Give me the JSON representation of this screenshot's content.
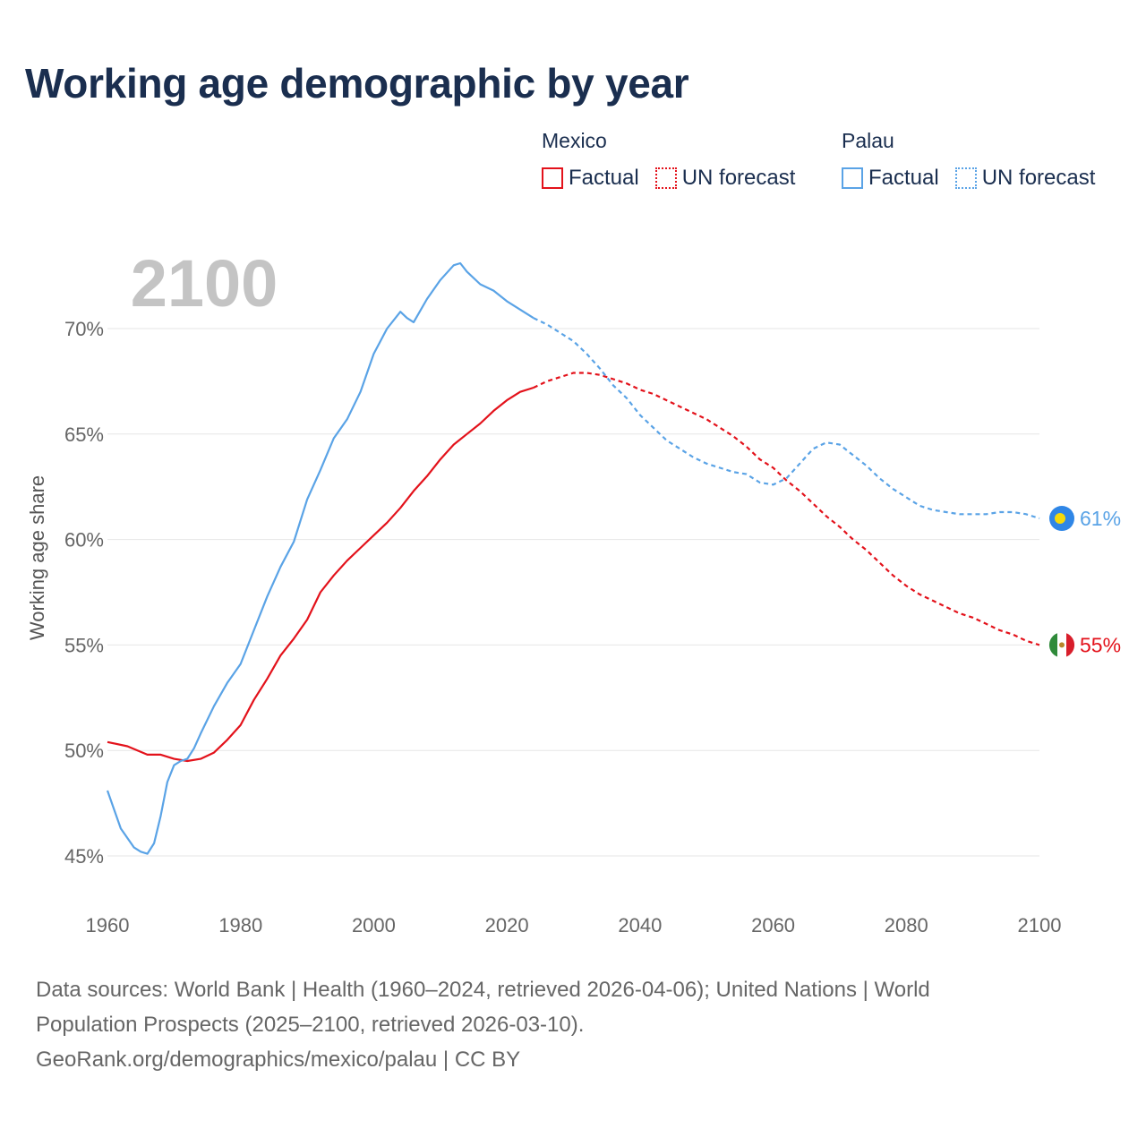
{
  "title": "Working age demographic by year",
  "year_label": "2100",
  "legend": {
    "mexico": {
      "name": "Mexico",
      "factual": "Factual",
      "forecast": "UN forecast"
    },
    "palau": {
      "name": "Palau",
      "factual": "Factual",
      "forecast": "UN forecast"
    }
  },
  "colors": {
    "mexico": "#e3121b",
    "palau": "#5aa3e6"
  },
  "source": {
    "line1": "Data sources: World Bank | Health (1960–2024, retrieved 2026-04-06); United Nations | World",
    "line2": "Population Prospects (2025–2100, retrieved 2026-03-10).",
    "line3": "GeoRank.org/demographics/mexico/palau | CC BY"
  },
  "chart_data": {
    "type": "line",
    "title": "Working age demographic by year",
    "xlabel": "",
    "ylabel": "Working age share",
    "xlim": [
      1960,
      2100
    ],
    "ylim": [
      44.5,
      72
    ],
    "x_ticks": [
      1960,
      1980,
      2000,
      2020,
      2040,
      2060,
      2080,
      2100
    ],
    "y_ticks": [
      45,
      50,
      55,
      60,
      65,
      70
    ],
    "y_tick_labels": [
      "45%",
      "50%",
      "55%",
      "60%",
      "65%",
      "70%"
    ],
    "grid": true,
    "series": [
      {
        "name": "Mexico",
        "key": "mexico",
        "factual": [
          [
            1960,
            50.4
          ],
          [
            1963,
            50.2
          ],
          [
            1966,
            49.8
          ],
          [
            1968,
            49.8
          ],
          [
            1970,
            49.6
          ],
          [
            1972,
            49.5
          ],
          [
            1974,
            49.6
          ],
          [
            1976,
            49.9
          ],
          [
            1978,
            50.5
          ],
          [
            1980,
            51.2
          ],
          [
            1982,
            52.4
          ],
          [
            1984,
            53.4
          ],
          [
            1986,
            54.5
          ],
          [
            1988,
            55.3
          ],
          [
            1990,
            56.2
          ],
          [
            1992,
            57.5
          ],
          [
            1994,
            58.3
          ],
          [
            1996,
            59.0
          ],
          [
            1998,
            59.6
          ],
          [
            2000,
            60.2
          ],
          [
            2002,
            60.8
          ],
          [
            2004,
            61.5
          ],
          [
            2006,
            62.3
          ],
          [
            2008,
            63.0
          ],
          [
            2010,
            63.8
          ],
          [
            2012,
            64.5
          ],
          [
            2014,
            65.0
          ],
          [
            2016,
            65.5
          ],
          [
            2018,
            66.1
          ],
          [
            2020,
            66.6
          ],
          [
            2022,
            67.0
          ],
          [
            2024,
            67.2
          ]
        ],
        "forecast": [
          [
            2024,
            67.2
          ],
          [
            2026,
            67.5
          ],
          [
            2028,
            67.7
          ],
          [
            2030,
            67.9
          ],
          [
            2032,
            67.9
          ],
          [
            2034,
            67.8
          ],
          [
            2036,
            67.6
          ],
          [
            2038,
            67.4
          ],
          [
            2040,
            67.1
          ],
          [
            2042,
            66.9
          ],
          [
            2044,
            66.6
          ],
          [
            2046,
            66.3
          ],
          [
            2048,
            66.0
          ],
          [
            2050,
            65.7
          ],
          [
            2052,
            65.3
          ],
          [
            2054,
            64.9
          ],
          [
            2056,
            64.4
          ],
          [
            2058,
            63.8
          ],
          [
            2060,
            63.4
          ],
          [
            2062,
            62.8
          ],
          [
            2064,
            62.3
          ],
          [
            2066,
            61.7
          ],
          [
            2068,
            61.1
          ],
          [
            2070,
            60.6
          ],
          [
            2072,
            60.0
          ],
          [
            2074,
            59.5
          ],
          [
            2076,
            58.9
          ],
          [
            2078,
            58.3
          ],
          [
            2080,
            57.8
          ],
          [
            2082,
            57.4
          ],
          [
            2084,
            57.1
          ],
          [
            2086,
            56.8
          ],
          [
            2088,
            56.5
          ],
          [
            2090,
            56.3
          ],
          [
            2092,
            56.0
          ],
          [
            2094,
            55.7
          ],
          [
            2096,
            55.5
          ],
          [
            2098,
            55.2
          ],
          [
            2100,
            55.0
          ]
        ],
        "end_label": "55%",
        "flag": "mexico-flag"
      },
      {
        "name": "Palau",
        "key": "palau",
        "factual": [
          [
            1960,
            48.1
          ],
          [
            1962,
            46.3
          ],
          [
            1964,
            45.4
          ],
          [
            1965,
            45.2
          ],
          [
            1966,
            45.1
          ],
          [
            1967,
            45.6
          ],
          [
            1968,
            46.9
          ],
          [
            1969,
            48.5
          ],
          [
            1970,
            49.3
          ],
          [
            1971,
            49.5
          ],
          [
            1972,
            49.6
          ],
          [
            1973,
            50.1
          ],
          [
            1974,
            50.8
          ],
          [
            1976,
            52.1
          ],
          [
            1978,
            53.2
          ],
          [
            1980,
            54.1
          ],
          [
            1982,
            55.7
          ],
          [
            1984,
            57.3
          ],
          [
            1986,
            58.7
          ],
          [
            1988,
            59.9
          ],
          [
            1990,
            61.9
          ],
          [
            1992,
            63.3
          ],
          [
            1994,
            64.8
          ],
          [
            1996,
            65.7
          ],
          [
            1998,
            67.0
          ],
          [
            2000,
            68.8
          ],
          [
            2002,
            70.0
          ],
          [
            2004,
            70.8
          ],
          [
            2005,
            70.5
          ],
          [
            2006,
            70.3
          ],
          [
            2008,
            71.4
          ],
          [
            2010,
            72.3
          ],
          [
            2012,
            73.0
          ],
          [
            2013,
            73.1
          ],
          [
            2014,
            72.7
          ],
          [
            2016,
            72.1
          ],
          [
            2018,
            71.8
          ],
          [
            2020,
            71.3
          ],
          [
            2022,
            70.9
          ],
          [
            2024,
            70.5
          ]
        ],
        "forecast": [
          [
            2024,
            70.5
          ],
          [
            2026,
            70.2
          ],
          [
            2028,
            69.8
          ],
          [
            2030,
            69.4
          ],
          [
            2032,
            68.8
          ],
          [
            2034,
            68.1
          ],
          [
            2036,
            67.3
          ],
          [
            2038,
            66.7
          ],
          [
            2040,
            65.9
          ],
          [
            2042,
            65.3
          ],
          [
            2044,
            64.7
          ],
          [
            2046,
            64.3
          ],
          [
            2048,
            63.9
          ],
          [
            2050,
            63.6
          ],
          [
            2052,
            63.4
          ],
          [
            2054,
            63.2
          ],
          [
            2056,
            63.1
          ],
          [
            2058,
            62.7
          ],
          [
            2060,
            62.6
          ],
          [
            2062,
            62.9
          ],
          [
            2064,
            63.6
          ],
          [
            2066,
            64.3
          ],
          [
            2068,
            64.6
          ],
          [
            2070,
            64.5
          ],
          [
            2072,
            64.0
          ],
          [
            2074,
            63.5
          ],
          [
            2076,
            62.9
          ],
          [
            2078,
            62.4
          ],
          [
            2080,
            62.0
          ],
          [
            2082,
            61.6
          ],
          [
            2084,
            61.4
          ],
          [
            2086,
            61.3
          ],
          [
            2088,
            61.2
          ],
          [
            2090,
            61.2
          ],
          [
            2092,
            61.2
          ],
          [
            2094,
            61.3
          ],
          [
            2096,
            61.3
          ],
          [
            2098,
            61.2
          ],
          [
            2100,
            61.0
          ]
        ],
        "end_label": "61%",
        "flag": "palau-flag"
      }
    ]
  }
}
